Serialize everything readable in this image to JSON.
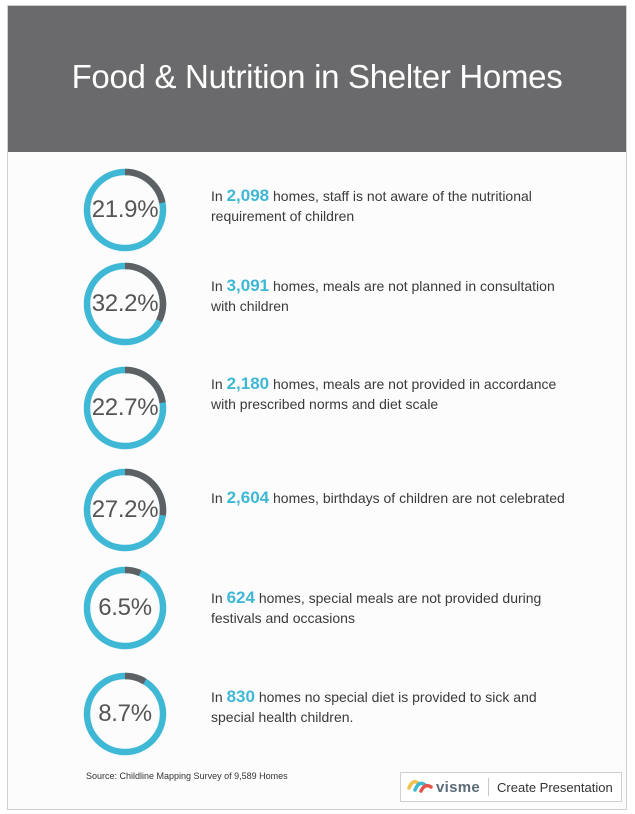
{
  "header": {
    "title": "Food & Nutrition in Shelter Homes"
  },
  "colors": {
    "accent": "#3fb8d6",
    "track_highlight": "#5e6163",
    "header_bg": "#6a6a6c"
  },
  "chart_data": {
    "type": "donut",
    "items": [
      {
        "percent": 21.9,
        "label": "21.9%",
        "count": "2,098",
        "pre": "In ",
        "post": " homes, staff is not aware of the nutritional requirement of children"
      },
      {
        "percent": 32.2,
        "label": "32.2%",
        "count": "3,091",
        "pre": "In ",
        "post": " homes, meals are not planned in consultation with children"
      },
      {
        "percent": 22.7,
        "label": "22.7%",
        "count": "2,180",
        "pre": "In ",
        "post": " homes, meals are not provided in accordance with prescribed norms and diet scale"
      },
      {
        "percent": 27.2,
        "label": "27.2%",
        "count": "2,604",
        "pre": "In ",
        "post": " homes, birthdays of children are not celebrated"
      },
      {
        "percent": 6.5,
        "label": "6.5%",
        "count": "624",
        "pre": "In ",
        "post": " homes, special meals are not provided during festivals and occasions"
      },
      {
        "percent": 8.7,
        "label": "8.7%",
        "count": "830",
        "pre": "In ",
        "post": " homes no special diet is provided to sick and special health children."
      }
    ]
  },
  "footer": {
    "source": "Source: Childline Mapping Survey of 9,589 Homes",
    "brand": "visme",
    "cta": "Create Presentation"
  }
}
